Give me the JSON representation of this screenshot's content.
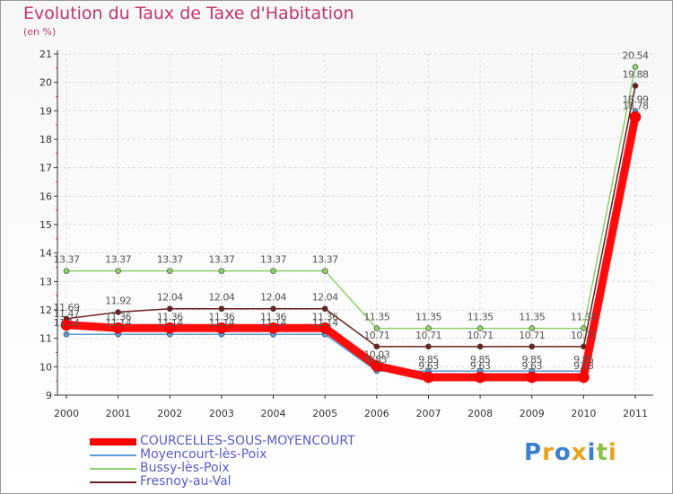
{
  "chart_data": {
    "type": "line",
    "title": "Evolution du Taux de Taxe d'Habitation",
    "unit_label": "(en %)",
    "xlabel": "",
    "ylabel": "",
    "ylim": [
      9,
      21
    ],
    "yticks": [
      "9",
      "10",
      "11",
      "12",
      "13",
      "14",
      "15",
      "16",
      "17",
      "18",
      "19",
      "20",
      "21"
    ],
    "categories": [
      "2000",
      "2001",
      "2002",
      "2003",
      "2004",
      "2005",
      "2006",
      "2007",
      "2008",
      "2009",
      "2010",
      "2011"
    ],
    "series": [
      {
        "name": "Moyencourt-lès-Poix",
        "color": "#5a9bd5",
        "values": [
          11.14,
          11.14,
          11.14,
          11.14,
          11.14,
          11.14,
          9.85,
          9.85,
          9.85,
          9.85,
          9.85,
          18.99
        ],
        "labels": [
          "11.14",
          "11.14",
          "11.14",
          "11.14",
          "11.14",
          "11.14",
          "9.85",
          "9.85",
          "9.85",
          "9.85",
          "9.85",
          "18.99"
        ]
      },
      {
        "name": "Bussy-lès-Poix",
        "color": "#8fd06c",
        "values": [
          13.37,
          13.37,
          13.37,
          13.37,
          13.37,
          13.37,
          11.35,
          11.35,
          11.35,
          11.35,
          11.35,
          20.54
        ],
        "labels": [
          "13.37",
          "13.37",
          "13.37",
          "13.37",
          "13.37",
          "13.37",
          "11.35",
          "11.35",
          "11.35",
          "11.35",
          "11.35",
          "20.54"
        ]
      },
      {
        "name": "Fresnoy-au-Val",
        "color": "#6b1f1f",
        "values": [
          11.69,
          11.92,
          12.04,
          12.04,
          12.04,
          12.04,
          10.71,
          10.71,
          10.71,
          10.71,
          10.71,
          19.88
        ],
        "labels": [
          "11.69",
          "11.92",
          "12.04",
          "12.04",
          "12.04",
          "12.04",
          "10.71",
          "10.71",
          "10.71",
          "10.71",
          "10.71",
          "19.88"
        ]
      },
      {
        "name": "COURCELLES-SOUS-MOYENCOURT",
        "color": "#ff0000",
        "values": [
          11.47,
          11.36,
          11.36,
          11.36,
          11.36,
          11.36,
          10.03,
          9.63,
          9.63,
          9.63,
          9.63,
          18.78
        ],
        "labels": [
          "11.47",
          "11.36",
          "11.36",
          "11.36",
          "11.36",
          "11.36",
          "10.03",
          "9.63",
          "9.63",
          "9.63",
          "9.63",
          "18.78"
        ]
      }
    ],
    "legend": {
      "placement": "bottom-left",
      "entries": [
        "COURCELLES-SOUS-MOYENCOURT",
        "Moyencourt-lès-Poix",
        "Bussy-lès-Poix",
        "Fresnoy-au-Val"
      ]
    }
  },
  "logo": {
    "letters": [
      "P",
      "r",
      "o",
      "x",
      "i",
      "t",
      "i"
    ],
    "colors": [
      "#3b7fd0",
      "#e8a21c",
      "#3b7fd0",
      "#e8a21c",
      "#3b7fd0",
      "#8fc14a",
      "#e8a21c"
    ]
  }
}
